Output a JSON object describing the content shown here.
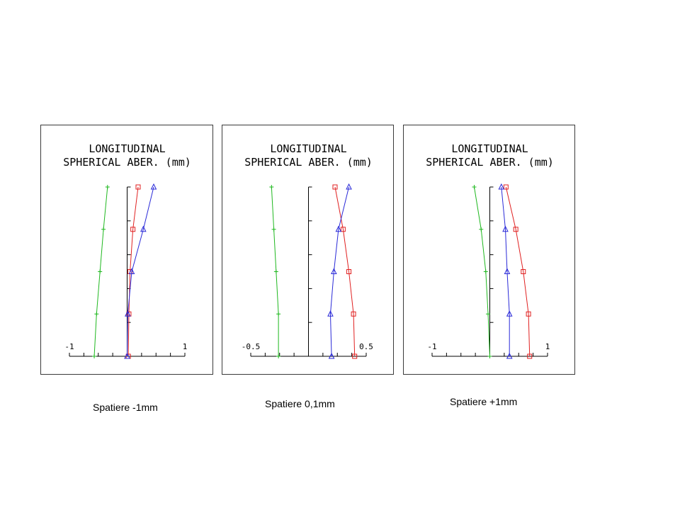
{
  "colors": {
    "green": "#1fb81f",
    "red": "#e02020",
    "blue": "#2a2ad8",
    "axis": "#000000"
  },
  "chart_data": [
    {
      "type": "line",
      "title": [
        "LONGITUDINAL",
        "SPHERICAL ABER. (mm)"
      ],
      "xlim": [
        -1,
        1
      ],
      "x_tick_labels": [
        "-1",
        "1"
      ],
      "xlabel": "",
      "ylabel": "",
      "ylim": [
        0,
        1
      ],
      "caption": "Spatiere -1mm",
      "series": [
        {
          "color": "green",
          "marker": "plus",
          "x": [
            -0.57,
            -0.53,
            -0.47,
            -0.41,
            -0.34
          ],
          "y": [
            0,
            0.25,
            0.5,
            0.75,
            1
          ]
        },
        {
          "color": "red",
          "marker": "square",
          "x": [
            0.02,
            0.03,
            0.05,
            0.1,
            0.19
          ],
          "y": [
            0,
            0.25,
            0.5,
            0.75,
            1
          ]
        },
        {
          "color": "blue",
          "marker": "triangle",
          "x": [
            0.0,
            0.01,
            0.08,
            0.28,
            0.46
          ],
          "y": [
            0,
            0.25,
            0.5,
            0.75,
            1
          ]
        }
      ]
    },
    {
      "type": "line",
      "title": [
        "LONGITUDINAL",
        "SPHERICAL ABER. (mm)"
      ],
      "xlim": [
        -0.5,
        0.5
      ],
      "x_tick_labels": [
        "-0.5",
        "0.5"
      ],
      "xlabel": "",
      "ylabel": "",
      "ylim": [
        0,
        1
      ],
      "caption": "Spatiere 0,1mm",
      "series": [
        {
          "color": "green",
          "marker": "plus",
          "x": [
            -0.26,
            -0.26,
            -0.28,
            -0.3,
            -0.32
          ],
          "y": [
            0,
            0.25,
            0.5,
            0.75,
            1
          ]
        },
        {
          "color": "red",
          "marker": "square",
          "x": [
            0.4,
            0.39,
            0.35,
            0.3,
            0.23
          ],
          "y": [
            0,
            0.25,
            0.5,
            0.75,
            1
          ]
        },
        {
          "color": "blue",
          "marker": "triangle",
          "x": [
            0.2,
            0.19,
            0.22,
            0.26,
            0.35
          ],
          "y": [
            0,
            0.25,
            0.5,
            0.75,
            1
          ]
        }
      ]
    },
    {
      "type": "line",
      "title": [
        "LONGITUDINAL",
        "SPHERICAL ABER. (mm)"
      ],
      "xlim": [
        -1,
        1
      ],
      "x_tick_labels": [
        "-1",
        "1"
      ],
      "xlabel": "",
      "ylabel": "",
      "ylim": [
        0,
        1
      ],
      "caption": "Spatiere +1mm",
      "series": [
        {
          "color": "green",
          "marker": "plus",
          "x": [
            0.0,
            -0.03,
            -0.07,
            -0.15,
            -0.27
          ],
          "y": [
            0,
            0.25,
            0.5,
            0.75,
            1
          ]
        },
        {
          "color": "red",
          "marker": "square",
          "x": [
            0.69,
            0.67,
            0.58,
            0.45,
            0.28
          ],
          "y": [
            0,
            0.25,
            0.5,
            0.75,
            1
          ]
        },
        {
          "color": "blue",
          "marker": "triangle",
          "x": [
            0.34,
            0.34,
            0.3,
            0.27,
            0.2
          ],
          "y": [
            0,
            0.25,
            0.5,
            0.75,
            1
          ]
        }
      ]
    }
  ]
}
